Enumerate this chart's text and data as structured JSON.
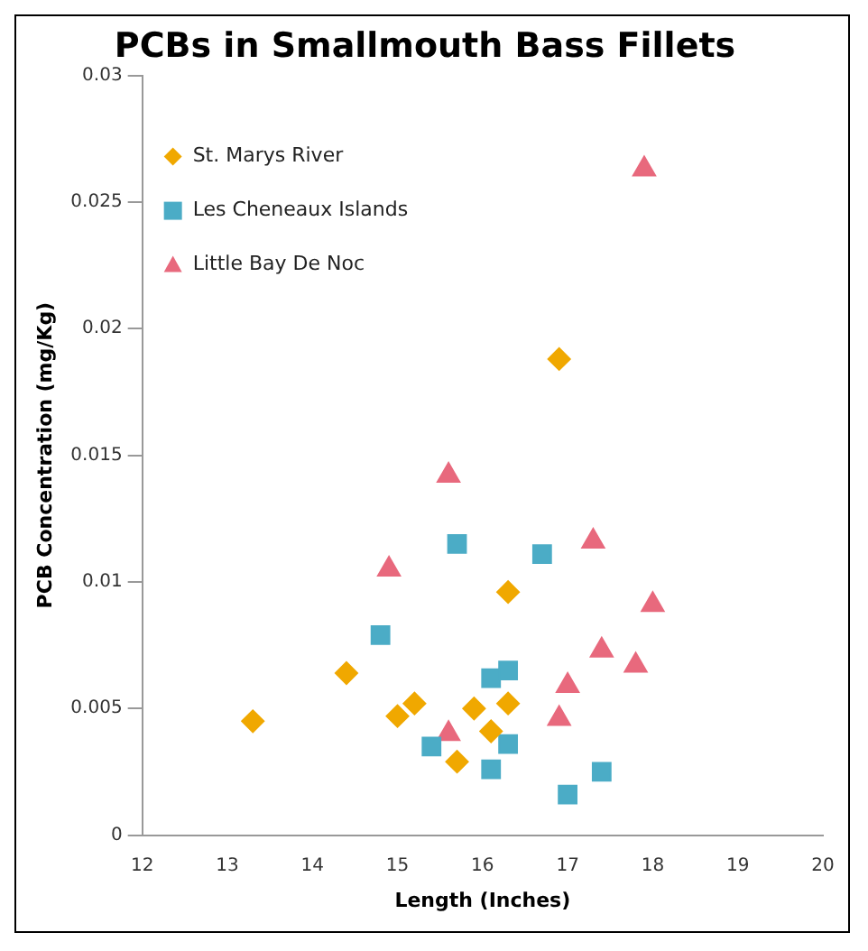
{
  "chart_data": {
    "type": "scatter",
    "title": "PCBs in Smallmouth Bass Fillets",
    "xlabel": "Length (Inches)",
    "ylabel": "PCB Concentration (mg/Kg)",
    "xlim": [
      12,
      20
    ],
    "xticks": [
      12,
      13,
      14,
      15,
      16,
      17,
      18,
      19,
      20
    ],
    "ylim": [
      0,
      0.03
    ],
    "yticks": [
      0,
      0.005,
      0.01,
      0.015,
      0.02,
      0.025,
      0.03
    ],
    "grid": false,
    "legend": "top left",
    "series": [
      {
        "name": "St. Marys River",
        "color": "#f0a800",
        "marker": "diamond",
        "x": [
          13.3,
          14.4,
          15.0,
          15.2,
          15.7,
          15.9,
          16.1,
          16.3,
          16.3,
          16.9
        ],
        "values": [
          0.0045,
          0.0064,
          0.0047,
          0.0052,
          0.0029,
          0.005,
          0.0041,
          0.0052,
          0.0096,
          0.0188
        ]
      },
      {
        "name": "Les Cheneaux Islands",
        "color": "#4bacc6",
        "marker": "square",
        "x": [
          14.8,
          15.4,
          15.7,
          16.1,
          16.3,
          16.1,
          16.3,
          16.7,
          17.0,
          17.4
        ],
        "values": [
          0.0079,
          0.0035,
          0.0115,
          0.0062,
          0.0065,
          0.0026,
          0.0036,
          0.0111,
          0.0016,
          0.0025
        ]
      },
      {
        "name": "Little Bay De Noc",
        "color": "#e8697d",
        "marker": "triangle",
        "x": [
          14.9,
          15.6,
          15.6,
          16.9,
          17.0,
          17.3,
          17.4,
          17.8,
          17.9,
          18.0
        ],
        "values": [
          0.0105,
          0.0142,
          0.004,
          0.0046,
          0.0059,
          0.0116,
          0.0073,
          0.0067,
          0.0263,
          0.0091
        ]
      }
    ]
  }
}
